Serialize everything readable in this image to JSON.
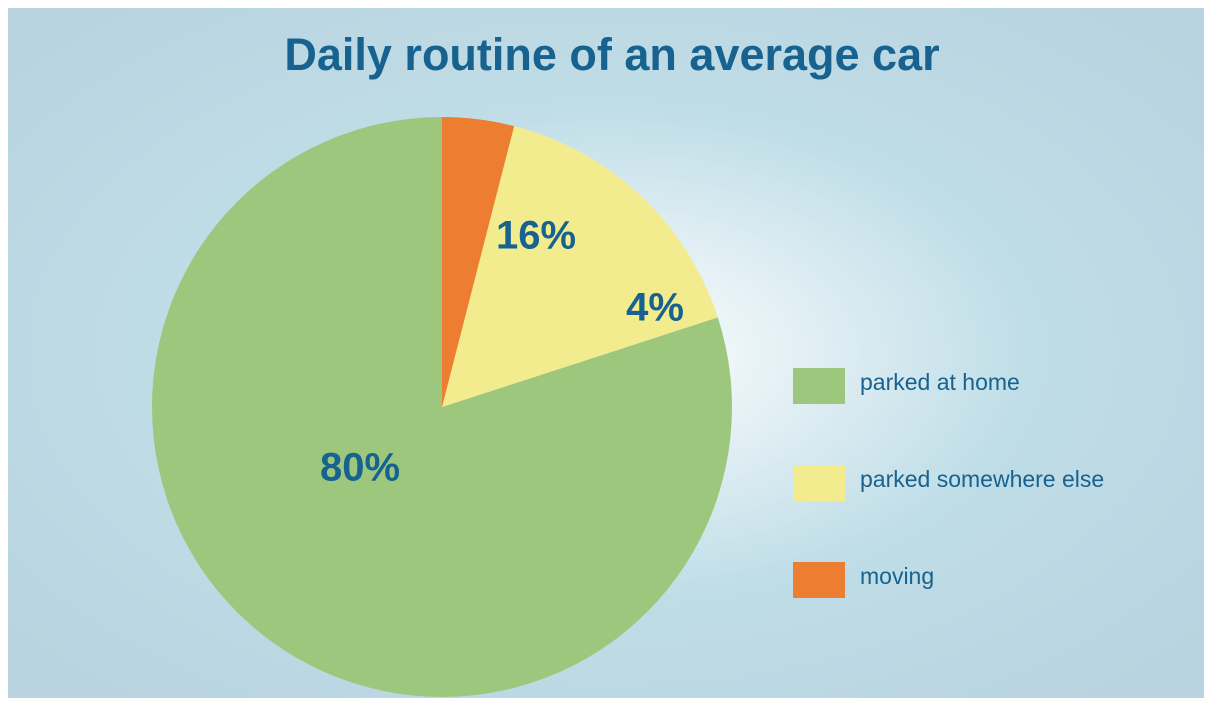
{
  "chart_data": {
    "type": "pie",
    "title": "Daily routine of an average car",
    "categories": [
      "parked at home",
      "parked somewhere else",
      "moving"
    ],
    "values": [
      80,
      16,
      4
    ],
    "value_labels": [
      "80%",
      "16%",
      "4%"
    ],
    "colors": [
      "#9dc77d",
      "#f2ec8e",
      "#ed7d31"
    ],
    "legend": "right"
  }
}
